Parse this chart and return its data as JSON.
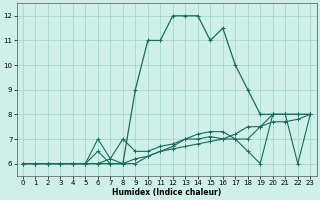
{
  "xlabel": "Humidex (Indice chaleur)",
  "bg_color": "#cef0e8",
  "grid_color": "#a8d8cc",
  "line_color": "#1a6b5a",
  "xlim": [
    -0.5,
    23.5
  ],
  "ylim": [
    5.5,
    12.5
  ],
  "xticks": [
    0,
    1,
    2,
    3,
    4,
    5,
    6,
    7,
    8,
    9,
    10,
    11,
    12,
    13,
    14,
    15,
    16,
    17,
    18,
    19,
    20,
    21,
    22,
    23
  ],
  "yticks": [
    6,
    7,
    8,
    9,
    10,
    11,
    12
  ],
  "series": [
    [
      6.0,
      6.0,
      6.0,
      6.0,
      6.0,
      6.0,
      6.0,
      6.0,
      6.0,
      9.0,
      11.0,
      11.0,
      12.0,
      12.0,
      12.0,
      11.0,
      11.5,
      10.0,
      9.0,
      8.0,
      8.0,
      8.0,
      8.0,
      8.0
    ],
    [
      6.0,
      6.0,
      6.0,
      6.0,
      6.0,
      6.0,
      6.5,
      6.0,
      6.0,
      6.2,
      6.3,
      6.5,
      6.6,
      6.7,
      6.8,
      6.9,
      7.0,
      7.2,
      7.5,
      7.5,
      7.7,
      7.7,
      7.8,
      8.0
    ],
    [
      6.0,
      6.0,
      6.0,
      6.0,
      6.0,
      6.0,
      6.0,
      6.2,
      7.0,
      6.5,
      6.5,
      6.7,
      6.8,
      7.0,
      7.2,
      7.3,
      7.3,
      7.0,
      7.0,
      7.5,
      8.0,
      8.0,
      8.0,
      8.0
    ],
    [
      6.0,
      6.0,
      6.0,
      6.0,
      6.0,
      6.0,
      7.0,
      6.2,
      6.0,
      6.0,
      6.3,
      6.5,
      6.7,
      7.0,
      7.0,
      7.1,
      7.0,
      7.0,
      6.5,
      6.0,
      8.0,
      8.0,
      6.0,
      8.0
    ]
  ]
}
